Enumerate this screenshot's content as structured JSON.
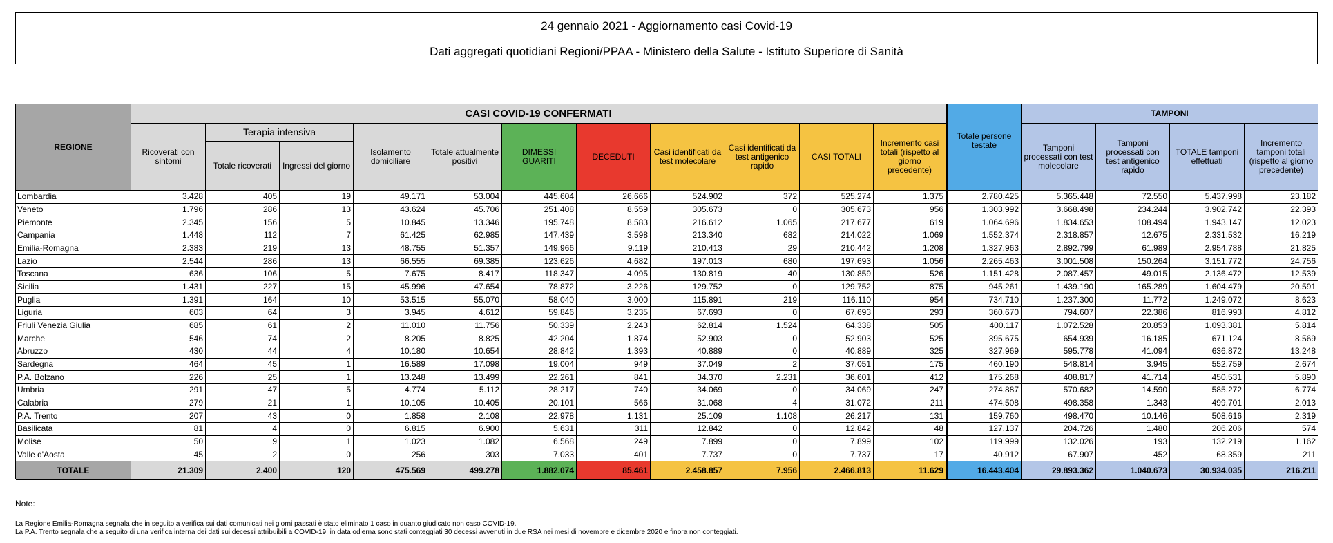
{
  "header": {
    "title": "24 gennaio 2021 - Aggiornamento casi Covid-19",
    "subtitle": "Dati aggregati quotidiani Regioni/PPAA - Ministero della Salute - Istituto Superiore di Sanità"
  },
  "table": {
    "group_headers": {
      "casi": "CASI COVID-19 CONFERMATI",
      "terapia": "Terapia intensiva",
      "tamponi": "TAMPONI"
    },
    "columns": [
      "REGIONE",
      "Ricoverati con sintomi",
      "Totale ricoverati",
      "Ingressi del giorno",
      "Isolamento domiciliare",
      "Totale attualmente positivi",
      "DIMESSI GUARITI",
      "DECEDUTI",
      "Casi identificati da test molecolare",
      "Casi identificati da test antigenico rapido",
      "CASI TOTALI",
      "Incremento casi totali (rispetto al giorno precedente)",
      "Totale persone testate",
      "Tamponi processati con test molecolare",
      "Tamponi processati con test antigenico rapido",
      "TOTALE tamponi effettuati",
      "Incremento tamponi totali (rispetto al giorno precedente)"
    ],
    "rows": [
      [
        "Lombardia",
        "3.428",
        "405",
        "19",
        "49.171",
        "53.004",
        "445.604",
        "26.666",
        "524.902",
        "372",
        "525.274",
        "1.375",
        "2.780.425",
        "5.365.448",
        "72.550",
        "5.437.998",
        "23.182"
      ],
      [
        "Veneto",
        "1.796",
        "286",
        "13",
        "43.624",
        "45.706",
        "251.408",
        "8.559",
        "305.673",
        "0",
        "305.673",
        "956",
        "1.303.992",
        "3.668.498",
        "234.244",
        "3.902.742",
        "22.393"
      ],
      [
        "Piemonte",
        "2.345",
        "156",
        "5",
        "10.845",
        "13.346",
        "195.748",
        "8.583",
        "216.612",
        "1.065",
        "217.677",
        "619",
        "1.064.696",
        "1.834.653",
        "108.494",
        "1.943.147",
        "12.023"
      ],
      [
        "Campania",
        "1.448",
        "112",
        "7",
        "61.425",
        "62.985",
        "147.439",
        "3.598",
        "213.340",
        "682",
        "214.022",
        "1.069",
        "1.552.374",
        "2.318.857",
        "12.675",
        "2.331.532",
        "16.219"
      ],
      [
        "Emilia-Romagna",
        "2.383",
        "219",
        "13",
        "48.755",
        "51.357",
        "149.966",
        "9.119",
        "210.413",
        "29",
        "210.442",
        "1.208",
        "1.327.963",
        "2.892.799",
        "61.989",
        "2.954.788",
        "21.825"
      ],
      [
        "Lazio",
        "2.544",
        "286",
        "13",
        "66.555",
        "69.385",
        "123.626",
        "4.682",
        "197.013",
        "680",
        "197.693",
        "1.056",
        "2.265.463",
        "3.001.508",
        "150.264",
        "3.151.772",
        "24.756"
      ],
      [
        "Toscana",
        "636",
        "106",
        "5",
        "7.675",
        "8.417",
        "118.347",
        "4.095",
        "130.819",
        "40",
        "130.859",
        "526",
        "1.151.428",
        "2.087.457",
        "49.015",
        "2.136.472",
        "12.539"
      ],
      [
        "Sicilia",
        "1.431",
        "227",
        "15",
        "45.996",
        "47.654",
        "78.872",
        "3.226",
        "129.752",
        "0",
        "129.752",
        "875",
        "945.261",
        "1.439.190",
        "165.289",
        "1.604.479",
        "20.591"
      ],
      [
        "Puglia",
        "1.391",
        "164",
        "10",
        "53.515",
        "55.070",
        "58.040",
        "3.000",
        "115.891",
        "219",
        "116.110",
        "954",
        "734.710",
        "1.237.300",
        "11.772",
        "1.249.072",
        "8.623"
      ],
      [
        "Liguria",
        "603",
        "64",
        "3",
        "3.945",
        "4.612",
        "59.846",
        "3.235",
        "67.693",
        "0",
        "67.693",
        "293",
        "360.670",
        "794.607",
        "22.386",
        "816.993",
        "4.812"
      ],
      [
        "Friuli Venezia Giulia",
        "685",
        "61",
        "2",
        "11.010",
        "11.756",
        "50.339",
        "2.243",
        "62.814",
        "1.524",
        "64.338",
        "505",
        "400.117",
        "1.072.528",
        "20.853",
        "1.093.381",
        "5.814"
      ],
      [
        "Marche",
        "546",
        "74",
        "2",
        "8.205",
        "8.825",
        "42.204",
        "1.874",
        "52.903",
        "0",
        "52.903",
        "525",
        "395.675",
        "654.939",
        "16.185",
        "671.124",
        "8.569"
      ],
      [
        "Abruzzo",
        "430",
        "44",
        "4",
        "10.180",
        "10.654",
        "28.842",
        "1.393",
        "40.889",
        "0",
        "40.889",
        "325",
        "327.969",
        "595.778",
        "41.094",
        "636.872",
        "13.248"
      ],
      [
        "Sardegna",
        "464",
        "45",
        "1",
        "16.589",
        "17.098",
        "19.004",
        "949",
        "37.049",
        "2",
        "37.051",
        "175",
        "460.190",
        "548.814",
        "3.945",
        "552.759",
        "2.674"
      ],
      [
        "P.A. Bolzano",
        "226",
        "25",
        "1",
        "13.248",
        "13.499",
        "22.261",
        "841",
        "34.370",
        "2.231",
        "36.601",
        "412",
        "175.268",
        "408.817",
        "41.714",
        "450.531",
        "5.890"
      ],
      [
        "Umbria",
        "291",
        "47",
        "5",
        "4.774",
        "5.112",
        "28.217",
        "740",
        "34.069",
        "0",
        "34.069",
        "247",
        "274.887",
        "570.682",
        "14.590",
        "585.272",
        "6.774"
      ],
      [
        "Calabria",
        "279",
        "21",
        "1",
        "10.105",
        "10.405",
        "20.101",
        "566",
        "31.068",
        "4",
        "31.072",
        "211",
        "474.508",
        "498.358",
        "1.343",
        "499.701",
        "2.013"
      ],
      [
        "P.A. Trento",
        "207",
        "43",
        "0",
        "1.858",
        "2.108",
        "22.978",
        "1.131",
        "25.109",
        "1.108",
        "26.217",
        "131",
        "159.760",
        "498.470",
        "10.146",
        "508.616",
        "2.319"
      ],
      [
        "Basilicata",
        "81",
        "4",
        "0",
        "6.815",
        "6.900",
        "5.631",
        "311",
        "12.842",
        "0",
        "12.842",
        "48",
        "127.137",
        "204.726",
        "1.480",
        "206.206",
        "574"
      ],
      [
        "Molise",
        "50",
        "9",
        "1",
        "1.023",
        "1.082",
        "6.568",
        "249",
        "7.899",
        "0",
        "7.899",
        "102",
        "119.999",
        "132.026",
        "193",
        "132.219",
        "1.162"
      ],
      [
        "Valle d'Aosta",
        "45",
        "2",
        "0",
        "256",
        "303",
        "7.033",
        "401",
        "7.737",
        "0",
        "7.737",
        "17",
        "40.912",
        "67.907",
        "452",
        "68.359",
        "211"
      ]
    ],
    "total": [
      "TOTALE",
      "21.309",
      "2.400",
      "120",
      "475.569",
      "499.278",
      "1.882.074",
      "85.461",
      "2.458.857",
      "7.956",
      "2.466.813",
      "11.629",
      "16.443.404",
      "29.893.362",
      "1.040.673",
      "30.934.035",
      "216.211"
    ]
  },
  "notes": {
    "label": "Note:",
    "lines": [
      "La Regione Emilia-Romagna segnala che in seguito a verifica sui dati comunicati nei giorni passati è stato eliminato 1 caso in quanto giudicato non caso COVID-19.",
      "La P.A. Trento segnala che a seguito di una verifica interna dei dati sui decessi attribuibili a COVID-19, in data odierna sono stati conteggiati 30 decessi avvenuti in due RSA nei mesi di novembre e dicembre 2020 e finora non conteggiati."
    ]
  }
}
